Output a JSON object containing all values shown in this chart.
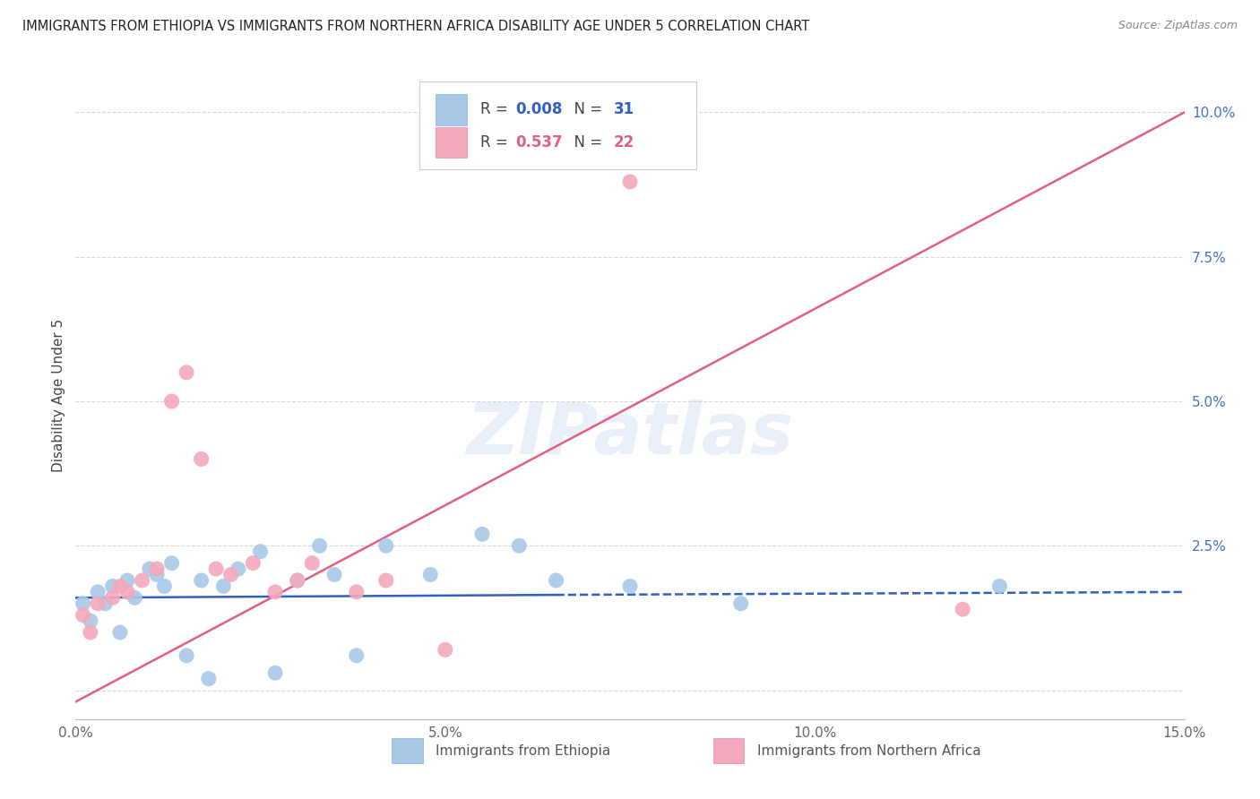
{
  "title": "IMMIGRANTS FROM ETHIOPIA VS IMMIGRANTS FROM NORTHERN AFRICA DISABILITY AGE UNDER 5 CORRELATION CHART",
  "source": "Source: ZipAtlas.com",
  "ylabel": "Disability Age Under 5",
  "x_min": 0.0,
  "x_max": 0.15,
  "y_min": -0.005,
  "y_max": 0.107,
  "x_ticks": [
    0.0,
    0.05,
    0.1,
    0.15
  ],
  "x_tick_labels": [
    "0.0%",
    "5.0%",
    "10.0%",
    "15.0%"
  ],
  "y_ticks_right": [
    0.0,
    0.025,
    0.05,
    0.075,
    0.1
  ],
  "y_tick_labels_right": [
    "",
    "2.5%",
    "5.0%",
    "7.5%",
    "10.0%"
  ],
  "series1_color": "#a8c8e8",
  "series2_color": "#f4a8bc",
  "line1_color": "#3060c0",
  "line2_color": "#e06080",
  "R1": 0.008,
  "N1": 31,
  "R2": 0.537,
  "N2": 22,
  "legend_label1": "Immigrants from Ethiopia",
  "legend_label2": "Immigrants from Northern Africa",
  "watermark": "ZIPatlas",
  "ethiopia_x": [
    0.001,
    0.002,
    0.003,
    0.004,
    0.005,
    0.006,
    0.007,
    0.008,
    0.01,
    0.011,
    0.012,
    0.013,
    0.015,
    0.017,
    0.018,
    0.02,
    0.022,
    0.025,
    0.027,
    0.03,
    0.033,
    0.035,
    0.038,
    0.042,
    0.048,
    0.055,
    0.06,
    0.065,
    0.075,
    0.09,
    0.125
  ],
  "ethiopia_y": [
    0.015,
    0.012,
    0.017,
    0.015,
    0.018,
    0.01,
    0.019,
    0.016,
    0.021,
    0.02,
    0.018,
    0.022,
    0.006,
    0.019,
    0.002,
    0.018,
    0.021,
    0.024,
    0.003,
    0.019,
    0.025,
    0.02,
    0.006,
    0.025,
    0.02,
    0.027,
    0.025,
    0.019,
    0.018,
    0.015,
    0.018
  ],
  "n_africa_x": [
    0.001,
    0.002,
    0.003,
    0.005,
    0.006,
    0.007,
    0.009,
    0.011,
    0.013,
    0.015,
    0.017,
    0.019,
    0.021,
    0.024,
    0.027,
    0.03,
    0.032,
    0.038,
    0.042,
    0.05,
    0.075,
    0.12
  ],
  "n_africa_y": [
    0.013,
    0.01,
    0.015,
    0.016,
    0.018,
    0.017,
    0.019,
    0.021,
    0.05,
    0.055,
    0.04,
    0.021,
    0.02,
    0.022,
    0.017,
    0.019,
    0.022,
    0.017,
    0.019,
    0.007,
    0.088,
    0.014
  ],
  "background_color": "#ffffff",
  "grid_color": "#d8d8d8",
  "line1_x_start": 0.0,
  "line1_x_end": 0.125,
  "line1_y_start": 0.016,
  "line1_y_end": 0.017,
  "line2_x_start": 0.0,
  "line2_x_end": 0.15,
  "line2_y_start": -0.002,
  "line2_y_end": 0.1
}
